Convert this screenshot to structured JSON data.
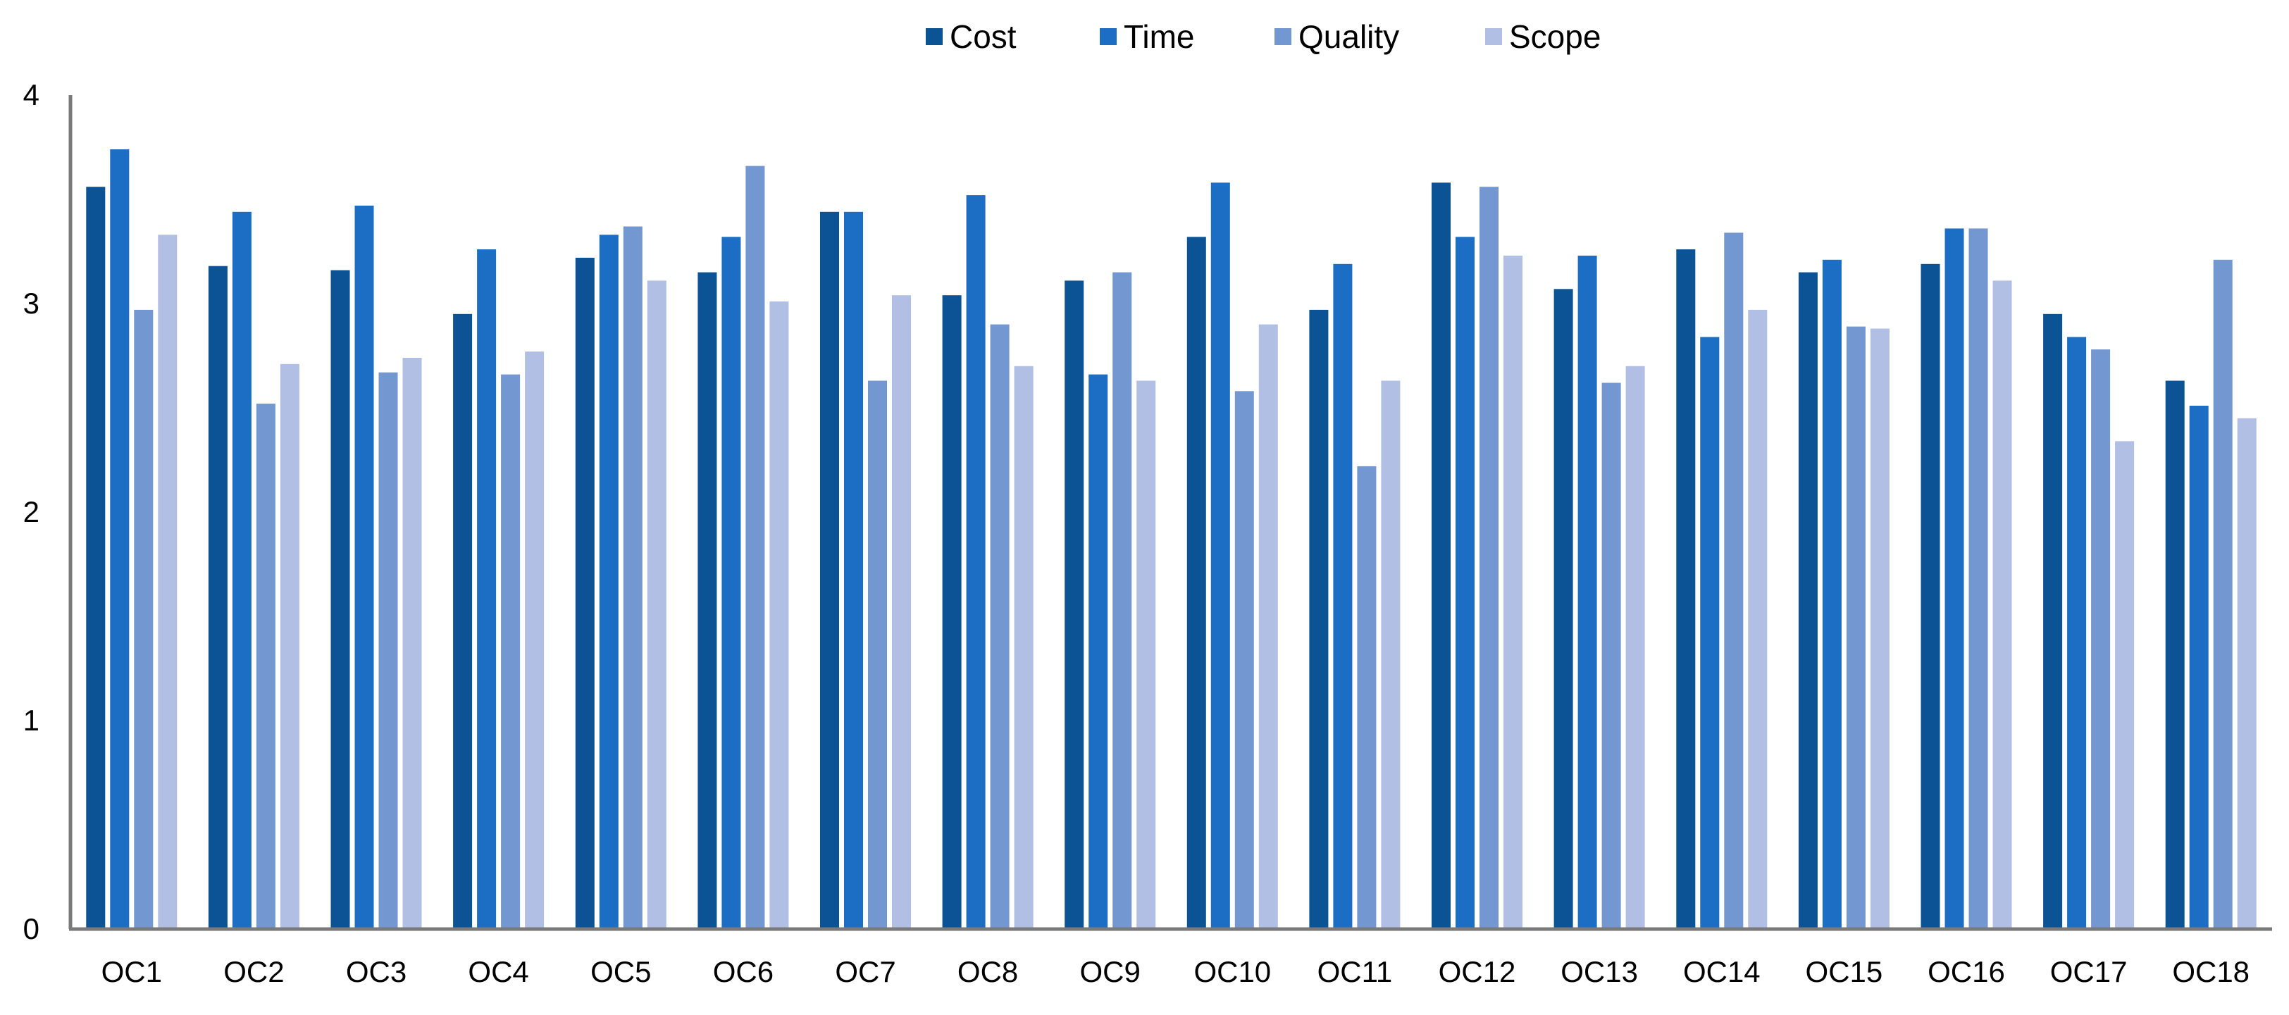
{
  "chart_data": {
    "type": "bar",
    "title": "",
    "xlabel": "",
    "ylabel": "",
    "ylim": [
      0,
      4
    ],
    "yticks": [
      0,
      1,
      2,
      3,
      4
    ],
    "grid": false,
    "legend_position": "top-center",
    "categories": [
      "OC1",
      "OC2",
      "OC3",
      "OC4",
      "OC5",
      "OC6",
      "OC7",
      "OC8",
      "OC9",
      "OC10",
      "OC11",
      "OC12",
      "OC13",
      "OC14",
      "OC15",
      "OC16",
      "OC17",
      "OC18"
    ],
    "series": [
      {
        "name": "Cost",
        "color": "#0b5394",
        "values": [
          3.56,
          3.18,
          3.16,
          2.95,
          3.22,
          3.15,
          3.44,
          3.04,
          3.11,
          3.32,
          2.97,
          3.58,
          3.07,
          3.26,
          3.15,
          3.19,
          2.95,
          2.63
        ]
      },
      {
        "name": "Time",
        "color": "#1c6dc4",
        "values": [
          3.74,
          3.44,
          3.47,
          3.26,
          3.33,
          3.32,
          3.44,
          3.52,
          2.66,
          3.58,
          3.19,
          3.32,
          3.23,
          2.84,
          3.21,
          3.36,
          2.84,
          2.51
        ]
      },
      {
        "name": "Quality",
        "color": "#7397d1",
        "values": [
          2.97,
          2.52,
          2.67,
          2.66,
          3.37,
          3.66,
          2.63,
          2.9,
          3.15,
          2.58,
          2.22,
          3.56,
          2.62,
          3.34,
          2.89,
          3.36,
          2.78,
          3.21
        ]
      },
      {
        "name": "Scope",
        "color": "#b0bfe3",
        "values": [
          3.33,
          2.71,
          2.74,
          2.77,
          3.11,
          3.01,
          3.04,
          2.7,
          2.63,
          2.9,
          2.63,
          3.23,
          2.7,
          2.97,
          2.88,
          3.11,
          2.34,
          2.45
        ]
      }
    ]
  }
}
